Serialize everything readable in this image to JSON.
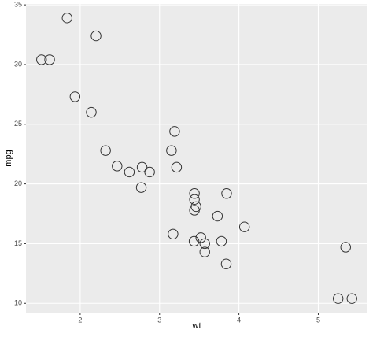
{
  "chart_data": {
    "type": "scatter",
    "x_label": "wt",
    "y_label": "mpg",
    "x": [
      2.62,
      2.875,
      2.32,
      3.215,
      3.44,
      3.46,
      3.57,
      3.19,
      3.15,
      3.44,
      3.44,
      4.07,
      3.73,
      3.78,
      5.25,
      5.424,
      5.345,
      2.2,
      1.615,
      1.835,
      2.465,
      3.52,
      3.435,
      3.84,
      3.845,
      1.935,
      2.14,
      1.513,
      3.17,
      2.77,
      3.57,
      2.78
    ],
    "values": [
      21.0,
      21.0,
      22.8,
      21.4,
      18.7,
      18.1,
      14.3,
      24.4,
      22.8,
      19.2,
      17.8,
      16.4,
      17.3,
      15.2,
      10.4,
      10.4,
      14.7,
      32.4,
      30.4,
      33.9,
      21.5,
      15.5,
      15.2,
      13.3,
      19.2,
      27.3,
      26.0,
      30.4,
      15.8,
      19.7,
      15.0,
      21.4
    ],
    "color": "#333333",
    "xlim": [
      1.317,
      5.62
    ],
    "ylim": [
      9.225,
      35.075
    ],
    "xticks": [
      2,
      3,
      4,
      5
    ],
    "yticks": [
      10,
      15,
      20,
      25,
      30,
      35
    ],
    "grid": true
  }
}
